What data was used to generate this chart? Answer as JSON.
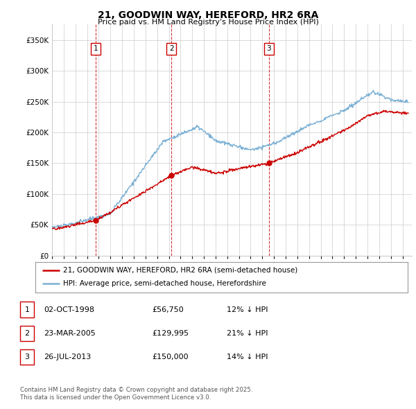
{
  "title": "21, GOODWIN WAY, HEREFORD, HR2 6RA",
  "subtitle": "Price paid vs. HM Land Registry's House Price Index (HPI)",
  "ytick_values": [
    0,
    50000,
    100000,
    150000,
    200000,
    250000,
    300000,
    350000
  ],
  "ylim": [
    0,
    375000
  ],
  "xlim_start": 1995.0,
  "xlim_end": 2025.8,
  "red_color": "#cc0000",
  "blue_color": "#7ab0d4",
  "vline_color": "#cc0000",
  "grid_color": "#cccccc",
  "background_color": "#ffffff",
  "sale_dates": [
    1998.75,
    2005.23,
    2013.56
  ],
  "sale_prices": [
    56750,
    129995,
    150000
  ],
  "sale_labels": [
    "1",
    "2",
    "3"
  ],
  "legend_line1": "21, GOODWIN WAY, HEREFORD, HR2 6RA (semi-detached house)",
  "legend_line2": "HPI: Average price, semi-detached house, Herefordshire",
  "table_rows": [
    [
      "1",
      "02-OCT-1998",
      "£56,750",
      "12% ↓ HPI"
    ],
    [
      "2",
      "23-MAR-2005",
      "£129,995",
      "21% ↓ HPI"
    ],
    [
      "3",
      "26-JUL-2013",
      "£150,000",
      "14% ↓ HPI"
    ]
  ],
  "footer": "Contains HM Land Registry data © Crown copyright and database right 2025.\nThis data is licensed under the Open Government Licence v3.0."
}
